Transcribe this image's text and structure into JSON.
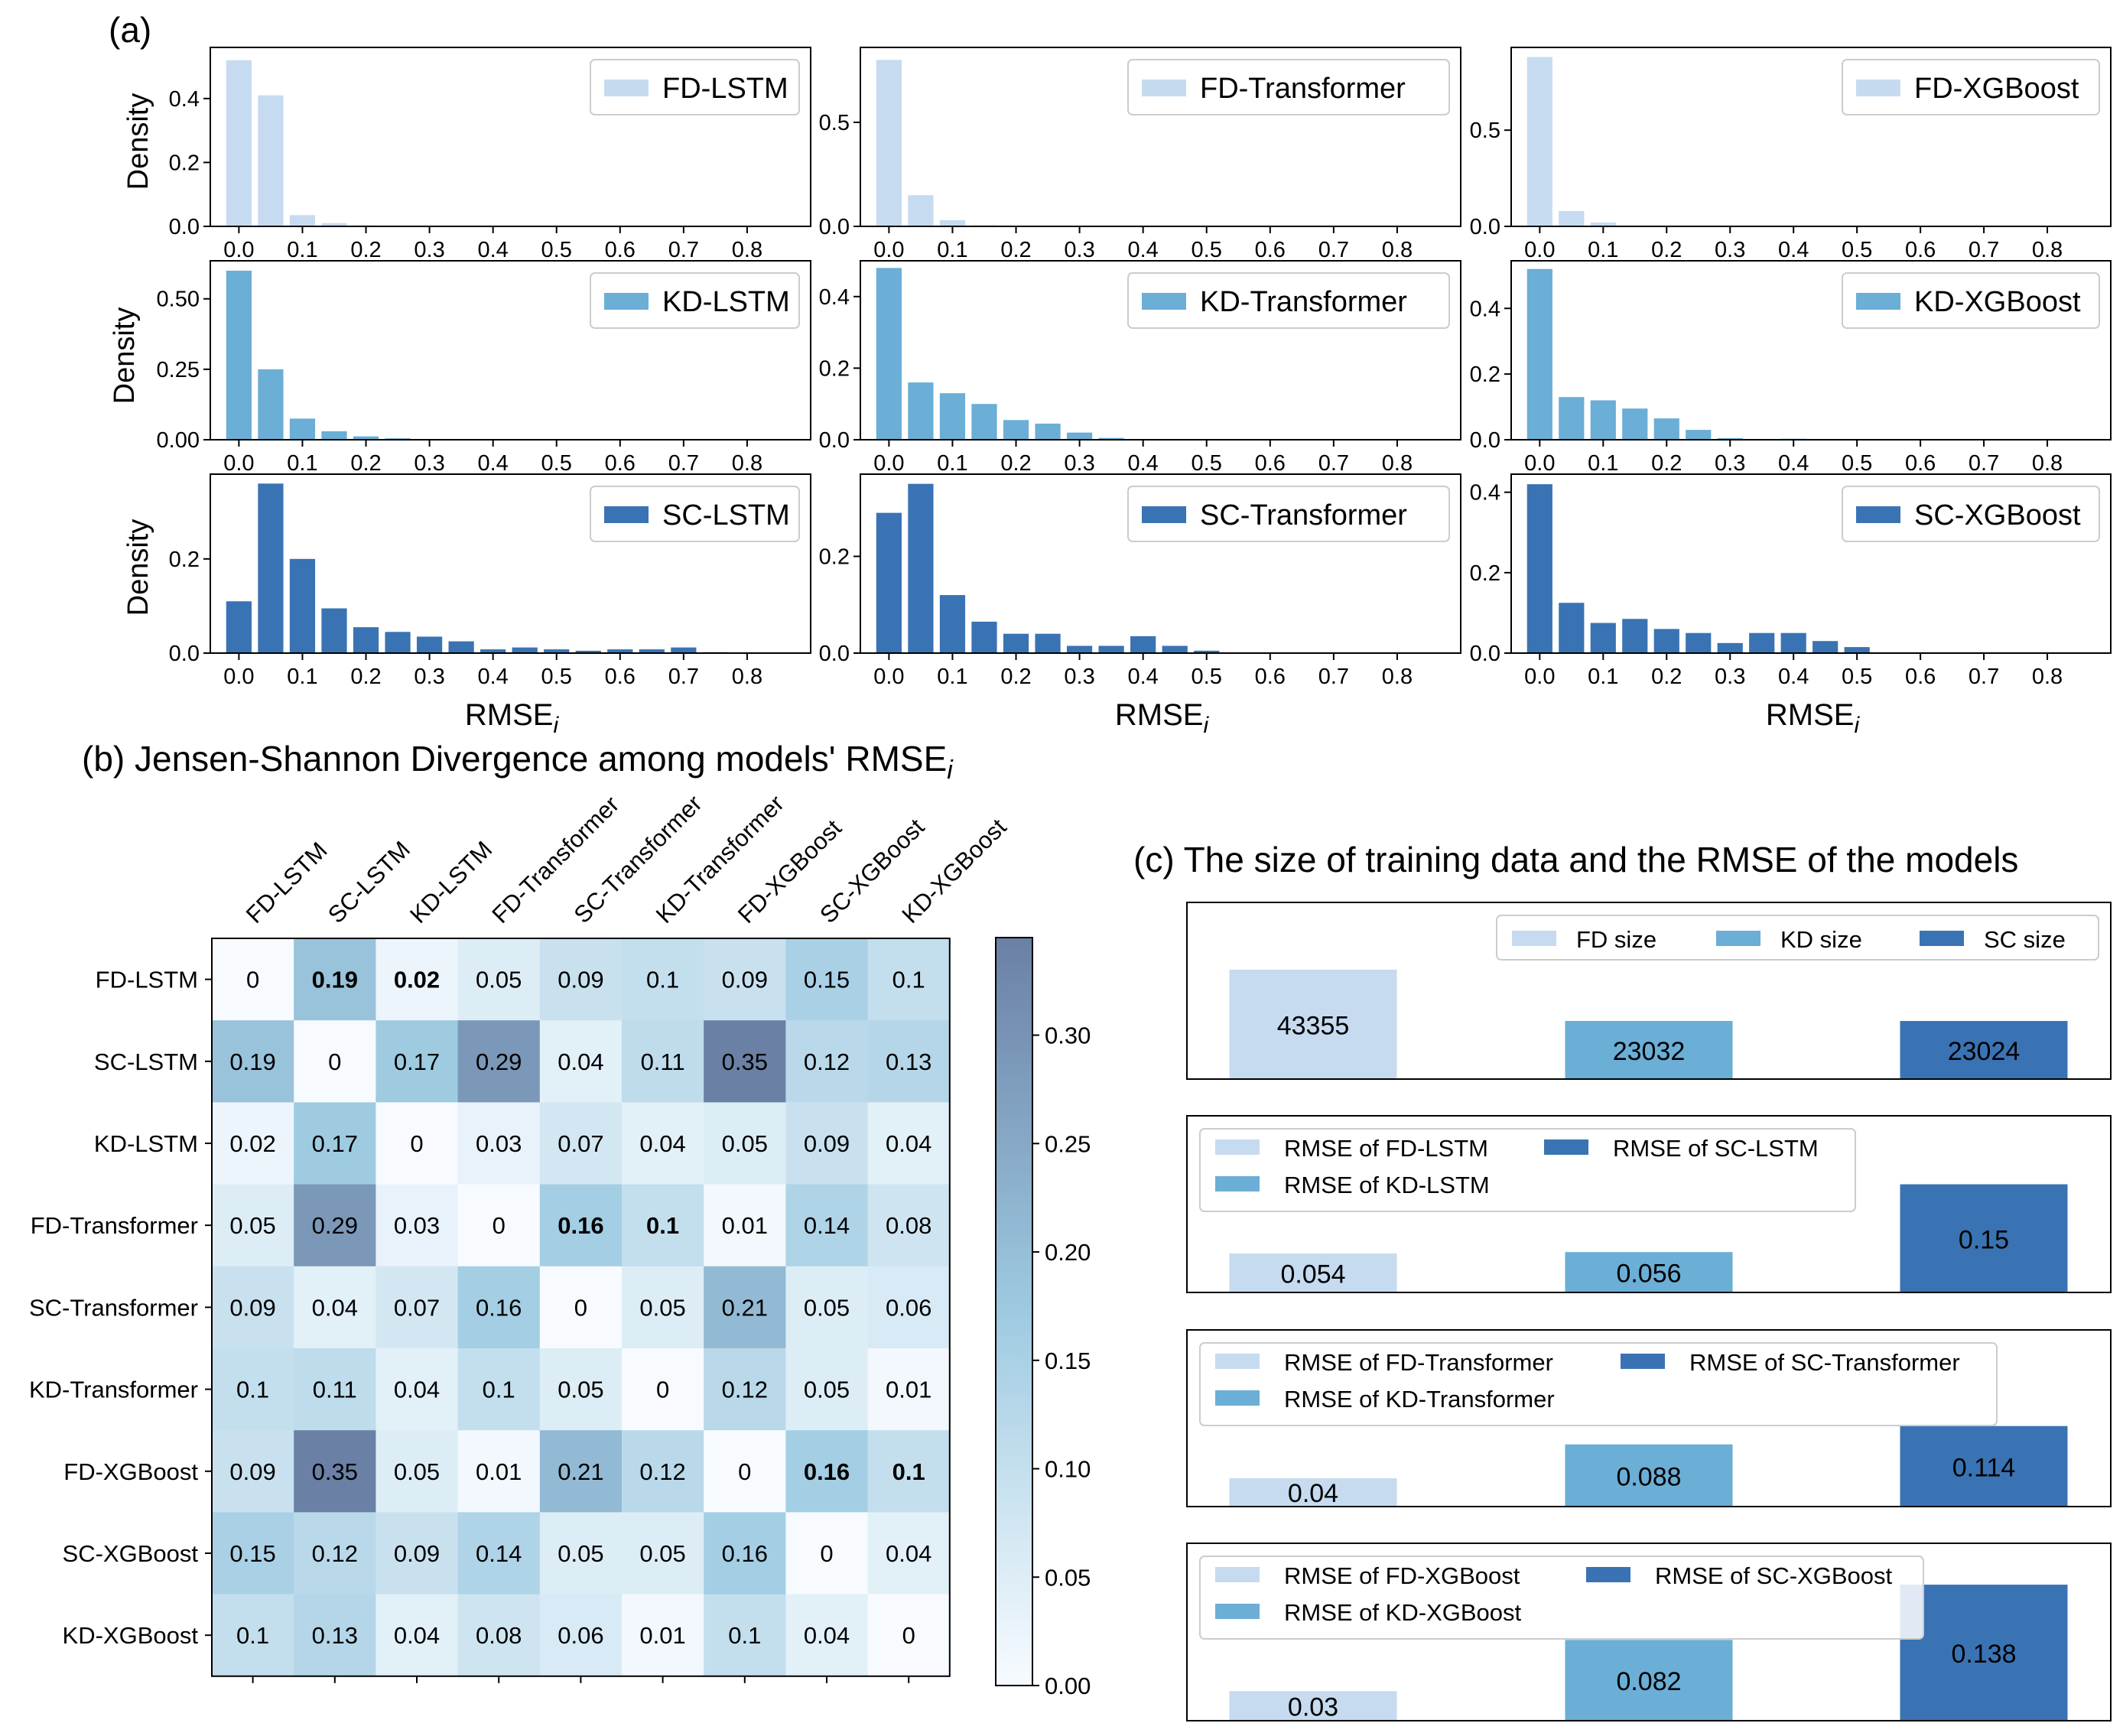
{
  "colors": {
    "fd": "#c6dbef",
    "kd": "#6baed6",
    "sc": "#3a73b3"
  },
  "panel_a": {
    "label": "(a)",
    "density_label": "Density",
    "xlabel_main": "RMSE",
    "xlabel_sub": "i"
  },
  "panel_b": {
    "title_main": "(b) Jensen-Shannon Divergence among models' RMSE",
    "title_sub": "i"
  },
  "panel_c": {
    "title": "(c) The size of training data and the RMSE of the models"
  },
  "chart_data": [
    {
      "id": "a-fd-lstm",
      "type": "bar",
      "series": "FD-LSTM",
      "group": "fd",
      "x": [
        0.0,
        0.05,
        0.1,
        0.15,
        0.2
      ],
      "values": [
        0.52,
        0.41,
        0.035,
        0.01,
        0.003
      ],
      "ylim": [
        0,
        0.56
      ],
      "yticks": [
        0.0,
        0.2,
        0.4
      ],
      "ytick_labels": [
        "0.0",
        "0.2",
        "0.4"
      ],
      "xticks": [
        0.0,
        0.1,
        0.2,
        0.3,
        0.4,
        0.5,
        0.6,
        0.7,
        0.8
      ],
      "xtick_labels": [
        "0.0",
        "0.1",
        "0.2",
        "0.3",
        "0.4",
        "0.5",
        "0.6",
        "0.7",
        "0.8"
      ],
      "xlim": [
        -0.045,
        0.9
      ],
      "legend": "top-right"
    },
    {
      "id": "a-fd-transformer",
      "type": "bar",
      "series": "FD-Transformer",
      "group": "fd",
      "x": [
        0.0,
        0.05,
        0.1,
        0.15
      ],
      "values": [
        0.8,
        0.15,
        0.03,
        0.005
      ],
      "ylim": [
        0,
        0.86
      ],
      "yticks": [
        0.0,
        0.5
      ],
      "ytick_labels": [
        "0.0",
        "0.5"
      ],
      "xticks": [
        0.0,
        0.1,
        0.2,
        0.3,
        0.4,
        0.5,
        0.6,
        0.7,
        0.8
      ],
      "xtick_labels": [
        "0.0",
        "0.1",
        "0.2",
        "0.3",
        "0.4",
        "0.5",
        "0.6",
        "0.7",
        "0.8"
      ],
      "xlim": [
        -0.045,
        0.9
      ],
      "legend": "top-right"
    },
    {
      "id": "a-fd-xgboost",
      "type": "bar",
      "series": "FD-XGBoost",
      "group": "fd",
      "x": [
        0.0,
        0.05,
        0.1
      ],
      "values": [
        0.88,
        0.08,
        0.02
      ],
      "ylim": [
        0,
        0.93
      ],
      "yticks": [
        0.0,
        0.5
      ],
      "ytick_labels": [
        "0.0",
        "0.5"
      ],
      "xticks": [
        0.0,
        0.1,
        0.2,
        0.3,
        0.4,
        0.5,
        0.6,
        0.7,
        0.8
      ],
      "xtick_labels": [
        "0.0",
        "0.1",
        "0.2",
        "0.3",
        "0.4",
        "0.5",
        "0.6",
        "0.7",
        "0.8"
      ],
      "xlim": [
        -0.045,
        0.9
      ],
      "legend": "top-right"
    },
    {
      "id": "a-kd-lstm",
      "type": "bar",
      "series": "KD-LSTM",
      "group": "kd",
      "x": [
        0.0,
        0.05,
        0.1,
        0.15,
        0.2,
        0.25,
        0.3
      ],
      "values": [
        0.6,
        0.25,
        0.075,
        0.03,
        0.012,
        0.005,
        0.002
      ],
      "ylim": [
        0,
        0.635
      ],
      "yticks": [
        0.0,
        0.25,
        0.5
      ],
      "ytick_labels": [
        "0.00",
        "0.25",
        "0.50"
      ],
      "xticks": [
        0.0,
        0.1,
        0.2,
        0.3,
        0.4,
        0.5,
        0.6,
        0.7,
        0.8
      ],
      "xtick_labels": [
        "0.0",
        "0.1",
        "0.2",
        "0.3",
        "0.4",
        "0.5",
        "0.6",
        "0.7",
        "0.8"
      ],
      "xlim": [
        -0.045,
        0.9
      ],
      "legend": "top-right"
    },
    {
      "id": "a-kd-transformer",
      "type": "bar",
      "series": "KD-Transformer",
      "group": "kd",
      "x": [
        0.0,
        0.05,
        0.1,
        0.15,
        0.2,
        0.25,
        0.3,
        0.35
      ],
      "values": [
        0.48,
        0.16,
        0.13,
        0.1,
        0.055,
        0.045,
        0.02,
        0.005
      ],
      "ylim": [
        0,
        0.5
      ],
      "yticks": [
        0.0,
        0.2,
        0.4
      ],
      "ytick_labels": [
        "0.0",
        "0.2",
        "0.4"
      ],
      "xticks": [
        0.0,
        0.1,
        0.2,
        0.3,
        0.4,
        0.5,
        0.6,
        0.7,
        0.8
      ],
      "xtick_labels": [
        "0.0",
        "0.1",
        "0.2",
        "0.3",
        "0.4",
        "0.5",
        "0.6",
        "0.7",
        "0.8"
      ],
      "xlim": [
        -0.045,
        0.9
      ],
      "legend": "top-right"
    },
    {
      "id": "a-kd-xgboost",
      "type": "bar",
      "series": "KD-XGBoost",
      "group": "kd",
      "x": [
        0.0,
        0.05,
        0.1,
        0.15,
        0.2,
        0.25,
        0.3,
        0.4
      ],
      "values": [
        0.52,
        0.13,
        0.12,
        0.095,
        0.065,
        0.03,
        0.005,
        0.003
      ],
      "ylim": [
        0,
        0.545
      ],
      "yticks": [
        0.0,
        0.2,
        0.4
      ],
      "ytick_labels": [
        "0.0",
        "0.2",
        "0.4"
      ],
      "xticks": [
        0.0,
        0.1,
        0.2,
        0.3,
        0.4,
        0.5,
        0.6,
        0.7,
        0.8
      ],
      "xtick_labels": [
        "0.0",
        "0.1",
        "0.2",
        "0.3",
        "0.4",
        "0.5",
        "0.6",
        "0.7",
        "0.8"
      ],
      "xlim": [
        -0.045,
        0.9
      ],
      "legend": "top-right"
    },
    {
      "id": "a-sc-lstm",
      "type": "bar",
      "series": "SC-LSTM",
      "group": "sc",
      "x": [
        0.0,
        0.05,
        0.1,
        0.15,
        0.2,
        0.25,
        0.3,
        0.35,
        0.4,
        0.45,
        0.5,
        0.55,
        0.6,
        0.65,
        0.7,
        0.75
      ],
      "values": [
        0.11,
        0.36,
        0.2,
        0.095,
        0.055,
        0.045,
        0.035,
        0.025,
        0.008,
        0.012,
        0.008,
        0.005,
        0.008,
        0.008,
        0.012,
        0.002
      ],
      "ylim": [
        0,
        0.38
      ],
      "yticks": [
        0.0,
        0.2
      ],
      "ytick_labels": [
        "0.0",
        "0.2"
      ],
      "xticks": [
        0.0,
        0.1,
        0.2,
        0.3,
        0.4,
        0.5,
        0.6,
        0.7,
        0.8
      ],
      "xtick_labels": [
        "0.0",
        "0.1",
        "0.2",
        "0.3",
        "0.4",
        "0.5",
        "0.6",
        "0.7",
        "0.8"
      ],
      "xlim": [
        -0.045,
        0.9
      ],
      "legend": "top-right"
    },
    {
      "id": "a-sc-transformer",
      "type": "bar",
      "series": "SC-Transformer",
      "group": "sc",
      "x": [
        0.0,
        0.05,
        0.1,
        0.15,
        0.2,
        0.25,
        0.3,
        0.35,
        0.4,
        0.45,
        0.5
      ],
      "values": [
        0.29,
        0.35,
        0.12,
        0.065,
        0.04,
        0.04,
        0.015,
        0.015,
        0.035,
        0.015,
        0.005
      ],
      "ylim": [
        0,
        0.37
      ],
      "yticks": [
        0.0,
        0.2
      ],
      "ytick_labels": [
        "0.0",
        "0.2"
      ],
      "xticks": [
        0.0,
        0.1,
        0.2,
        0.3,
        0.4,
        0.5,
        0.6,
        0.7,
        0.8
      ],
      "xtick_labels": [
        "0.0",
        "0.1",
        "0.2",
        "0.3",
        "0.4",
        "0.5",
        "0.6",
        "0.7",
        "0.8"
      ],
      "xlim": [
        -0.045,
        0.9
      ],
      "legend": "top-right"
    },
    {
      "id": "a-sc-xgboost",
      "type": "bar",
      "series": "SC-XGBoost",
      "group": "sc",
      "x": [
        0.0,
        0.05,
        0.1,
        0.15,
        0.2,
        0.25,
        0.3,
        0.35,
        0.4,
        0.45,
        0.5
      ],
      "values": [
        0.42,
        0.125,
        0.075,
        0.085,
        0.06,
        0.05,
        0.025,
        0.05,
        0.05,
        0.03,
        0.015
      ],
      "ylim": [
        0,
        0.445
      ],
      "yticks": [
        0.0,
        0.2,
        0.4
      ],
      "ytick_labels": [
        "0.0",
        "0.2",
        "0.4"
      ],
      "xticks": [
        0.0,
        0.1,
        0.2,
        0.3,
        0.4,
        0.5,
        0.6,
        0.7,
        0.8
      ],
      "xtick_labels": [
        "0.0",
        "0.1",
        "0.2",
        "0.3",
        "0.4",
        "0.5",
        "0.6",
        "0.7",
        "0.8"
      ],
      "xlim": [
        -0.045,
        0.9
      ],
      "legend": "top-right"
    },
    {
      "id": "b-heatmap",
      "type": "heatmap",
      "labels": [
        "FD-LSTM",
        "SC-LSTM",
        "KD-LSTM",
        "FD-Transformer",
        "SC-Transformer",
        "KD-Transformer",
        "FD-XGBoost",
        "SC-XGBoost",
        "KD-XGBoost"
      ],
      "values": [
        [
          0.0,
          0.19,
          0.02,
          0.05,
          0.09,
          0.1,
          0.09,
          0.15,
          0.1
        ],
        [
          0.19,
          0.0,
          0.17,
          0.29,
          0.04,
          0.11,
          0.35,
          0.12,
          0.13
        ],
        [
          0.02,
          0.17,
          0.0,
          0.03,
          0.07,
          0.04,
          0.05,
          0.09,
          0.04
        ],
        [
          0.05,
          0.29,
          0.03,
          0.0,
          0.16,
          0.1,
          0.01,
          0.14,
          0.08
        ],
        [
          0.09,
          0.04,
          0.07,
          0.16,
          0.0,
          0.05,
          0.21,
          0.05,
          0.06
        ],
        [
          0.1,
          0.11,
          0.04,
          0.1,
          0.05,
          0.0,
          0.12,
          0.05,
          0.01
        ],
        [
          0.09,
          0.35,
          0.05,
          0.01,
          0.21,
          0.12,
          0.0,
          0.16,
          0.1
        ],
        [
          0.15,
          0.12,
          0.09,
          0.14,
          0.05,
          0.05,
          0.16,
          0.0,
          0.04
        ],
        [
          0.1,
          0.13,
          0.04,
          0.08,
          0.06,
          0.01,
          0.1,
          0.04,
          0.0
        ]
      ],
      "bold_cells": [
        [
          0,
          1
        ],
        [
          0,
          2
        ],
        [
          3,
          4
        ],
        [
          3,
          5
        ],
        [
          6,
          7
        ],
        [
          6,
          8
        ]
      ],
      "colorbar_range": [
        0,
        0.345
      ],
      "colorbar_ticks": [
        0.0,
        0.05,
        0.1,
        0.15,
        0.2,
        0.25,
        0.3
      ],
      "colorbar_tick_labels": [
        "0.00",
        "0.05",
        "0.10",
        "0.15",
        "0.20",
        "0.25",
        "0.30"
      ]
    },
    {
      "id": "c-size",
      "type": "bar",
      "categories": [
        "FD size",
        "KD size",
        "SC size"
      ],
      "groups": [
        "fd",
        "kd",
        "sc"
      ],
      "values": [
        43355,
        23032,
        23024
      ],
      "labels": [
        "43355",
        "23032",
        "23024"
      ],
      "ylim": [
        0,
        70000
      ],
      "legend": "top-right",
      "legend_cols": 3
    },
    {
      "id": "c-lstm",
      "type": "bar",
      "categories": [
        "RMSE of FD-LSTM",
        "RMSE of KD-LSTM",
        "RMSE of SC-LSTM"
      ],
      "groups": [
        "fd",
        "kd",
        "sc"
      ],
      "values": [
        0.054,
        0.056,
        0.15
      ],
      "labels": [
        "0.054",
        "0.056",
        "0.15"
      ],
      "ylim": [
        0,
        0.245
      ],
      "legend": "top-left",
      "legend_cols": 2
    },
    {
      "id": "c-transformer",
      "type": "bar",
      "categories": [
        "RMSE of FD-Transformer",
        "RMSE of KD-Transformer",
        "RMSE of SC-Transformer"
      ],
      "groups": [
        "fd",
        "kd",
        "sc"
      ],
      "values": [
        0.04,
        0.088,
        0.114
      ],
      "labels": [
        "0.04",
        "0.088",
        "0.114"
      ],
      "ylim": [
        0,
        0.25
      ],
      "legend": "top-left",
      "legend_cols": 2
    },
    {
      "id": "c-xgboost",
      "type": "bar",
      "categories": [
        "RMSE of FD-XGBoost",
        "RMSE of KD-XGBoost",
        "RMSE of SC-XGBoost"
      ],
      "groups": [
        "fd",
        "kd",
        "sc"
      ],
      "values": [
        0.03,
        0.082,
        0.138
      ],
      "labels": [
        "0.03",
        "0.082",
        "0.138"
      ],
      "ylim": [
        0,
        0.18
      ],
      "legend": "top-left",
      "legend_cols": 2
    }
  ]
}
